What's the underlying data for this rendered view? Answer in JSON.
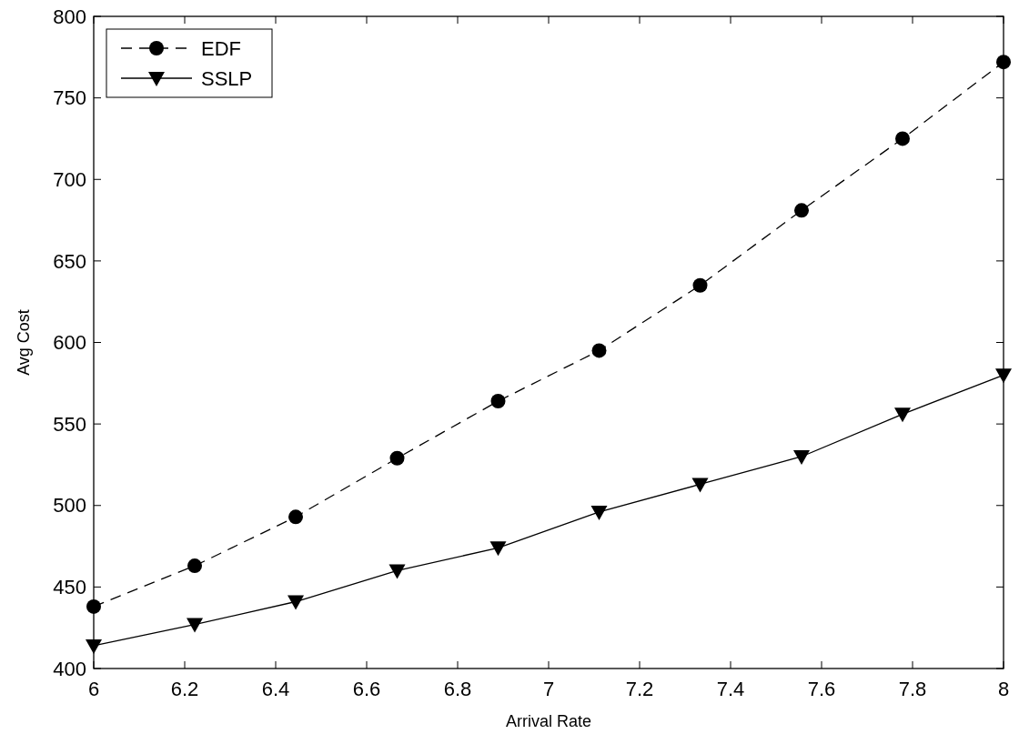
{
  "chart_data": {
    "type": "line",
    "xlabel": "Arrival Rate",
    "ylabel": "Avg Cost",
    "x": [
      6,
      6.222,
      6.444,
      6.667,
      6.889,
      7.111,
      7.333,
      7.556,
      7.778,
      8
    ],
    "series": [
      {
        "name": "EDF",
        "color": "#000000",
        "marker": "circle",
        "line_style": "dashed",
        "values": [
          438,
          463,
          493,
          529,
          564,
          595,
          635,
          681,
          725,
          772
        ]
      },
      {
        "name": "SSLP",
        "color": "#000000",
        "marker": "triangle",
        "line_style": "solid",
        "values": [
          414,
          427,
          441,
          460,
          474,
          496,
          513,
          530,
          556,
          580
        ]
      }
    ],
    "xlim": [
      6,
      8
    ],
    "xticks": [
      6,
      6.2,
      6.4,
      6.6,
      6.8,
      7,
      7.2,
      7.4,
      7.6,
      7.8,
      8
    ],
    "ylim": [
      400,
      800
    ],
    "yticks": [
      400,
      450,
      500,
      550,
      600,
      650,
      700,
      750,
      800
    ],
    "grid": false,
    "legend": "top left"
  }
}
